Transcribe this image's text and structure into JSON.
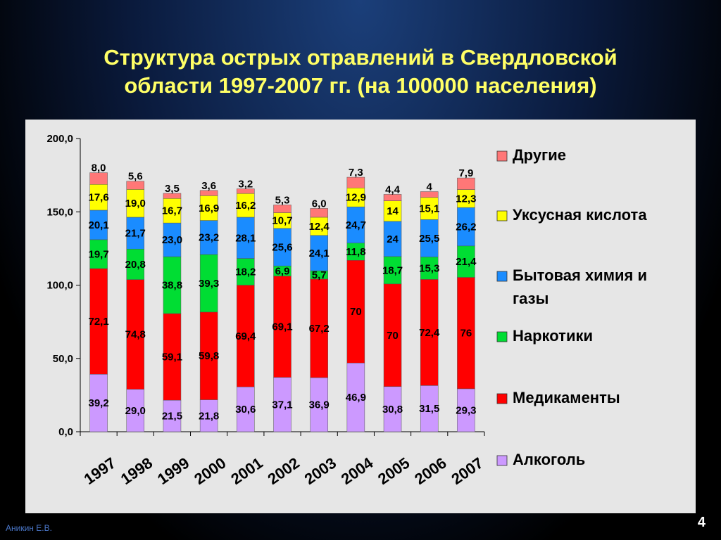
{
  "slide": {
    "title_line1": "Структура острых отравлений в Свердловской",
    "title_line2": "области 1997-2007 гг. (на 100000 населения)",
    "author": "Аникин Е.В.",
    "page_number": "4"
  },
  "chart_data": {
    "type": "bar",
    "stacked": true,
    "title": "Структура острых отравлений в Свердловской области 1997-2007 гг. (на 100000 населения)",
    "categories": [
      "1997",
      "1998",
      "1999",
      "2000",
      "2001",
      "2002",
      "2003",
      "2004",
      "2005",
      "2006",
      "2007"
    ],
    "ylim": [
      0,
      200
    ],
    "yticks": [
      "0,0",
      "50,0",
      "100,0",
      "150,0",
      "200,0"
    ],
    "grid": false,
    "legend_position": "right",
    "series": [
      {
        "name": "Алкоголь",
        "color": "#cc99ff",
        "values": [
          39.2,
          29.0,
          21.5,
          21.8,
          30.6,
          37.1,
          36.9,
          46.9,
          30.8,
          31.5,
          29.3
        ],
        "labels": [
          "39,2",
          "29,0",
          "21,5",
          "21,8",
          "30,6",
          "37,1",
          "36,9",
          "46,9",
          "30,8",
          "31,5",
          "29,3"
        ]
      },
      {
        "name": "Медикаменты",
        "color": "#ff0000",
        "values": [
          72.1,
          74.8,
          59.1,
          59.8,
          69.4,
          69.1,
          67.2,
          70,
          70,
          72.4,
          76
        ],
        "labels": [
          "72,1",
          "74,8",
          "59,1",
          "59,8",
          "69,4",
          "69,1",
          "67,2",
          "70",
          "70",
          "72,4",
          "76"
        ]
      },
      {
        "name": "Наркотики",
        "color": "#00dd33",
        "values": [
          19.7,
          20.8,
          38.8,
          39.3,
          18.2,
          6.9,
          5.7,
          11.8,
          18.7,
          15.3,
          21.4
        ],
        "labels": [
          "19,7",
          "20,8",
          "38,8",
          "39,3",
          "18,2",
          "6,9",
          "5,7",
          "11,8",
          "18,7",
          "15,3",
          "21,4"
        ]
      },
      {
        "name": "Бытовая химия и газы",
        "color": "#1a8cff",
        "values": [
          20.1,
          21.7,
          23.0,
          23.2,
          28.1,
          25.6,
          24.1,
          24.7,
          24,
          25.5,
          26.2
        ],
        "labels": [
          "20,1",
          "21,7",
          "23,0",
          "23,2",
          "28,1",
          "25,6",
          "24,1",
          "24,7",
          "24",
          "25,5",
          "26,2"
        ]
      },
      {
        "name": "Уксусная кислота",
        "color": "#ffff00",
        "values": [
          17.6,
          19.0,
          16.7,
          16.9,
          16.2,
          10.7,
          12.4,
          12.9,
          14,
          15.1,
          12.3
        ],
        "labels": [
          "17,6",
          "19,0",
          "16,7",
          "16,9",
          "16,2",
          "10,7",
          "12,4",
          "12,9",
          "14",
          "15,1",
          "12,3"
        ]
      },
      {
        "name": "Другие",
        "color": "#ff7777",
        "values": [
          8.0,
          5.6,
          3.5,
          3.6,
          3.2,
          5.3,
          6.0,
          7.3,
          4.4,
          4,
          7.9
        ],
        "labels": [
          "8,0",
          "5,6",
          "3,5",
          "3,6",
          "3,2",
          "5,3",
          "6,0",
          "7,3",
          "4,4",
          "4",
          "7,9"
        ]
      }
    ]
  }
}
